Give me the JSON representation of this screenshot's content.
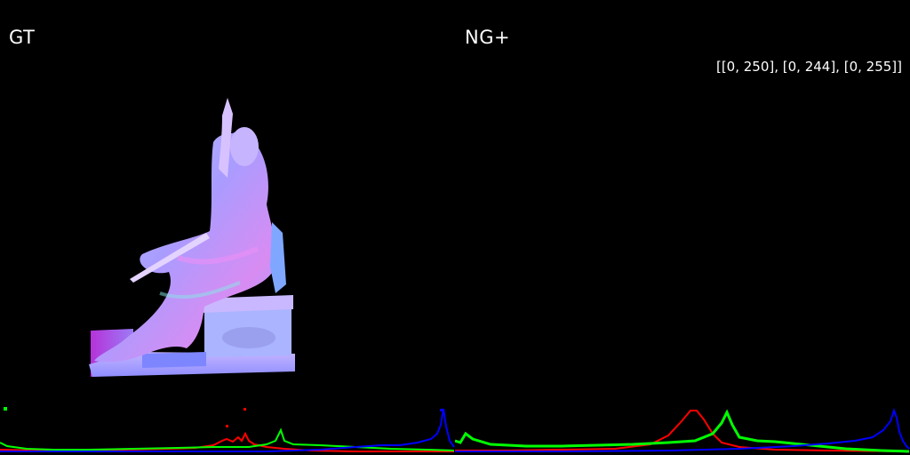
{
  "panels": [
    {
      "label": "GT"
    },
    {
      "label": "NG+",
      "range_text": "[[0, 250], [0, 244], [0, 255]]"
    }
  ],
  "colors": {
    "background": "#000000",
    "text": "#ffffff",
    "hist_red": "#ff0000",
    "hist_green": "#00ff00",
    "hist_blue": "#0000ff",
    "normal_light": "#a8a8ff",
    "normal_pink": "#e07cf0",
    "normal_cyan": "#86e8e6"
  },
  "icons": [
    "statue-normal-map",
    "rgb-histogram"
  ]
}
